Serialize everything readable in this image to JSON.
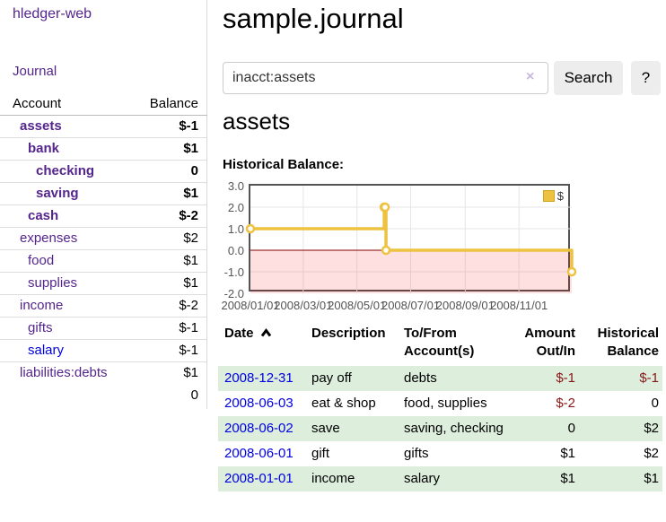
{
  "colors": {
    "link_purple": "#54258c",
    "link_blue": "#0000e0",
    "negative_strong": "#871717",
    "negative_muted": "#bf7f7f",
    "row_green": "#ddeedd",
    "chart_line": "#edc240",
    "chart_zero_line": "#800000",
    "chart_border": "#545454"
  },
  "brand": "hledger-web",
  "sidebar": {
    "journal_link": "Journal",
    "table": {
      "account_header": "Account",
      "balance_header": "Balance",
      "rows": [
        {
          "name": "assets",
          "indent": 1,
          "bold": true,
          "link": "purple",
          "balance": "$-1",
          "neg": "strong"
        },
        {
          "name": "bank",
          "indent": 2,
          "bold": true,
          "link": "purple",
          "balance": "$1",
          "neg": "none"
        },
        {
          "name": "checking",
          "indent": 3,
          "bold": true,
          "link": "purple",
          "balance": "0",
          "neg": "none"
        },
        {
          "name": "saving",
          "indent": 3,
          "bold": true,
          "link": "purple",
          "balance": "$1",
          "neg": "none"
        },
        {
          "name": "cash",
          "indent": 2,
          "bold": true,
          "link": "purple",
          "balance": "$-2",
          "neg": "strong"
        },
        {
          "name": "expenses",
          "indent": 1,
          "bold": false,
          "link": "purple",
          "balance": "$2",
          "neg": "none"
        },
        {
          "name": "food",
          "indent": 2,
          "bold": false,
          "link": "purple",
          "balance": "$1",
          "neg": "none"
        },
        {
          "name": "supplies",
          "indent": 2,
          "bold": false,
          "link": "purple",
          "balance": "$1",
          "neg": "none"
        },
        {
          "name": "income",
          "indent": 1,
          "bold": false,
          "link": "purple",
          "balance": "$-2",
          "neg": "muted"
        },
        {
          "name": "gifts",
          "indent": 2,
          "bold": false,
          "link": "purple",
          "balance": "$-1",
          "neg": "muted"
        },
        {
          "name": "salary",
          "indent": 2,
          "bold": false,
          "link": "blue",
          "balance": "$-1",
          "neg": "muted"
        },
        {
          "name": "liabilities:debts",
          "indent": 1,
          "bold": false,
          "link": "purple",
          "balance": "$1",
          "neg": "none"
        }
      ],
      "total": "0"
    }
  },
  "main": {
    "title": "sample.journal",
    "search": {
      "value": "inacct:assets",
      "clear_icon": "×",
      "search_button": "Search",
      "help_button": "?"
    },
    "account_heading": "assets",
    "chart_title": "Historical Balance:"
  },
  "chart_data": {
    "type": "line",
    "step": true,
    "title": "Historical Balance:",
    "series": [
      {
        "name": "$",
        "color": "#edc240",
        "points": [
          [
            "2008-01-01",
            1
          ],
          [
            "2008-06-01",
            2
          ],
          [
            "2008-06-02",
            2
          ],
          [
            "2008-06-03",
            0
          ],
          [
            "2008-12-31",
            -1
          ]
        ]
      }
    ],
    "x_ticks": [
      "2008/01/01",
      "2008/03/01",
      "2008/05/01",
      "2008/07/01",
      "2008/09/01",
      "2008/11/01"
    ],
    "y_ticks": [
      "3.0",
      "2.0",
      "1.0",
      "0.0",
      "-1.0",
      "-2.0"
    ],
    "ylim": [
      -2,
      3
    ],
    "xrange": [
      "2008-01-01",
      "2008-12-31"
    ],
    "grid": true,
    "negative_region": true,
    "legend": {
      "label": "$",
      "position": "top-right"
    }
  },
  "register": {
    "headers": {
      "date": [
        "Date"
      ],
      "description": [
        "Description"
      ],
      "account": [
        "To/From",
        "Account(s)"
      ],
      "amount": [
        "Amount",
        "Out/In"
      ],
      "balance": [
        "Historical",
        "Balance"
      ]
    },
    "sort_icon": "chevron-up",
    "rows": [
      {
        "date": "2008-12-31",
        "description": "pay off",
        "account": "debts",
        "amount": "$-1",
        "amount_neg": true,
        "balance": "$-1",
        "balance_neg": true
      },
      {
        "date": "2008-06-03",
        "description": "eat & shop",
        "account": "food, supplies",
        "amount": "$-2",
        "amount_neg": true,
        "balance": "0",
        "balance_neg": false
      },
      {
        "date": "2008-06-02",
        "description": "save",
        "account": "saving, checking",
        "amount": "0",
        "amount_neg": false,
        "balance": "$2",
        "balance_neg": false
      },
      {
        "date": "2008-06-01",
        "description": "gift",
        "account": "gifts",
        "amount": "$1",
        "amount_neg": false,
        "balance": "$2",
        "balance_neg": false
      },
      {
        "date": "2008-01-01",
        "description": "income",
        "account": "salary",
        "amount": "$1",
        "amount_neg": false,
        "balance": "$1",
        "balance_neg": false
      }
    ]
  }
}
